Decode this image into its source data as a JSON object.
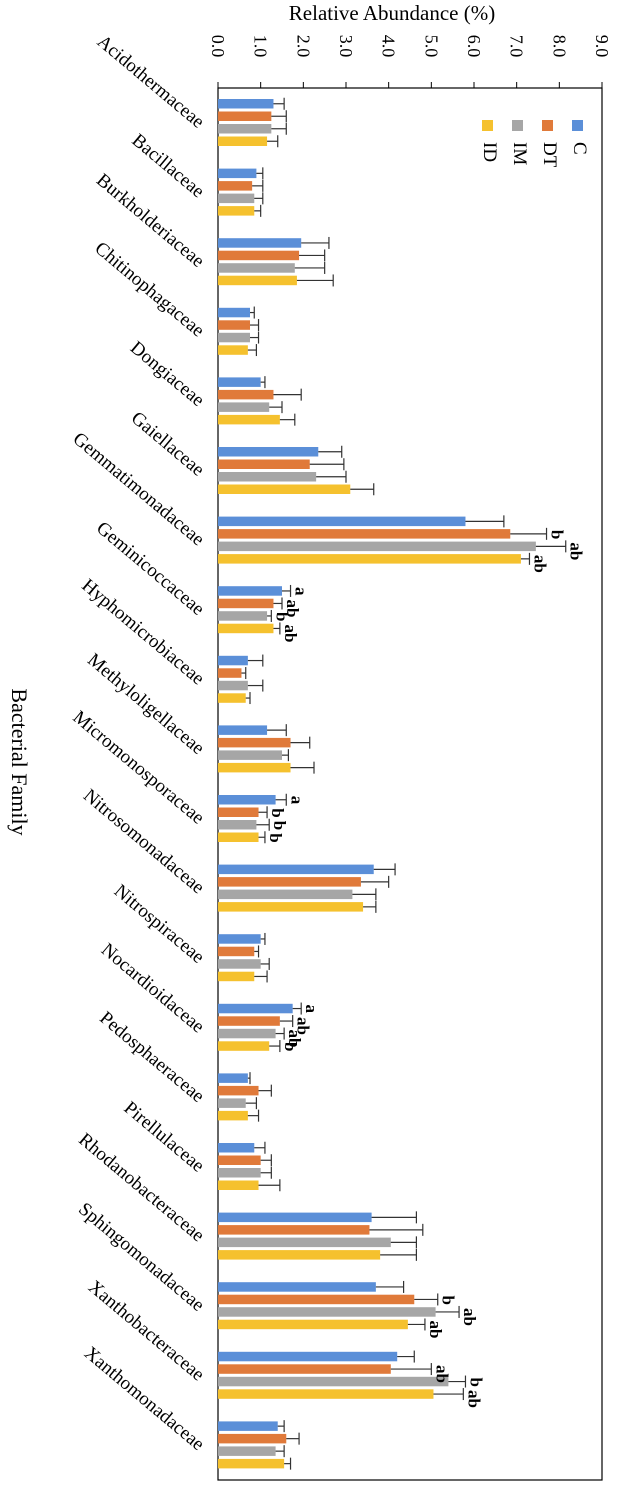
{
  "chart_data": {
    "type": "bar",
    "orientation": "horizontal",
    "xlabel": "Relative Abundance (%)",
    "ylabel": "Bacterial Family",
    "xlim": [
      0,
      9
    ],
    "xticks": [
      "0.0",
      "1.0",
      "2.0",
      "3.0",
      "4.0",
      "5.0",
      "6.0",
      "7.0",
      "8.0",
      "9.0"
    ],
    "legend_position": "top-right (rotated)",
    "categories": [
      "Acidothermaceae",
      "Bacillaceae",
      "Burkholderiaceae",
      "Chitinophagaceae",
      "Dongiaceae",
      "Gaiellaceae",
      "Gemmatimonadaceae",
      "Geminicoccaceae",
      "Hyphomicrobiaceae",
      "Methyloligellaceae",
      "Micromonosporaceae",
      "Nitrosomonadaceae",
      "Nitrospiraceae",
      "Nocardioidaceae",
      "Pedosphaeraceae",
      "Pirellulaceae",
      "Rhodanobacteraceae",
      "Sphingomonadaceae",
      "Xanthobacteraceae",
      "Xanthomonadaceae"
    ],
    "series": [
      {
        "name": "C",
        "color": "#5b8fd8",
        "values": [
          1.3,
          0.9,
          1.95,
          0.75,
          1.0,
          2.35,
          5.8,
          1.5,
          0.7,
          1.15,
          1.35,
          3.65,
          1.0,
          1.75,
          0.7,
          0.85,
          3.6,
          3.7,
          4.2,
          1.4
        ],
        "errors": [
          0.25,
          0.15,
          0.65,
          0.1,
          0.1,
          0.55,
          0.9,
          0.2,
          0.35,
          0.45,
          0.25,
          0.5,
          0.1,
          0.2,
          0.05,
          0.25,
          1.05,
          0.65,
          0.4,
          0.15
        ],
        "letters": [
          "",
          "",
          "",
          "",
          "",
          "",
          "",
          "a",
          "",
          "",
          "a",
          "",
          "",
          "a",
          "",
          "",
          "",
          "",
          "",
          ""
        ]
      },
      {
        "name": "DT",
        "color": "#e07a3a",
        "values": [
          1.25,
          0.8,
          1.9,
          0.75,
          1.3,
          2.15,
          6.85,
          1.3,
          0.55,
          1.7,
          0.95,
          3.35,
          0.85,
          1.45,
          0.95,
          1.0,
          3.55,
          4.6,
          4.05,
          1.6
        ],
        "errors": [
          0.35,
          0.25,
          0.6,
          0.2,
          0.65,
          0.8,
          0.85,
          0.2,
          0.1,
          0.45,
          0.2,
          0.65,
          0.1,
          0.3,
          0.3,
          0.25,
          1.25,
          0.55,
          0.95,
          0.3
        ],
        "letters": [
          "",
          "",
          "",
          "",
          "",
          "",
          "b",
          "ab",
          "",
          "",
          "b",
          "",
          "",
          "ab",
          "",
          "",
          "",
          "b",
          "ab",
          ""
        ]
      },
      {
        "name": "IM",
        "color": "#a6a6a6",
        "values": [
          1.25,
          0.85,
          1.8,
          0.75,
          1.2,
          2.3,
          7.45,
          1.15,
          0.7,
          1.5,
          0.9,
          3.15,
          1.0,
          1.35,
          0.65,
          1.0,
          4.05,
          5.1,
          5.4,
          1.35
        ],
        "errors": [
          0.35,
          0.2,
          0.7,
          0.2,
          0.3,
          0.7,
          0.7,
          0.1,
          0.35,
          0.15,
          0.3,
          0.55,
          0.2,
          0.2,
          0.25,
          0.25,
          0.6,
          0.55,
          0.4,
          0.2
        ],
        "letters": [
          "",
          "",
          "",
          "",
          "",
          "",
          "ab",
          "b",
          "",
          "",
          "b",
          "",
          "",
          "ab",
          "",
          "",
          "",
          "ab",
          "b",
          ""
        ]
      },
      {
        "name": "ID",
        "color": "#f5c12e",
        "values": [
          1.15,
          0.85,
          1.85,
          0.7,
          1.45,
          3.1,
          7.1,
          1.3,
          0.65,
          1.7,
          0.95,
          3.4,
          0.85,
          1.2,
          0.7,
          0.95,
          3.8,
          4.45,
          5.05,
          1.55
        ],
        "errors": [
          0.25,
          0.15,
          0.85,
          0.2,
          0.35,
          0.55,
          0.2,
          0.15,
          0.1,
          0.55,
          0.15,
          0.3,
          0.3,
          0.25,
          0.25,
          0.5,
          0.85,
          0.4,
          0.7,
          0.15
        ],
        "letters": [
          "",
          "",
          "",
          "",
          "",
          "",
          "ab",
          "ab",
          "",
          "",
          "b",
          "",
          "",
          "b",
          "",
          "",
          "",
          "ab",
          "ab",
          ""
        ]
      }
    ]
  }
}
